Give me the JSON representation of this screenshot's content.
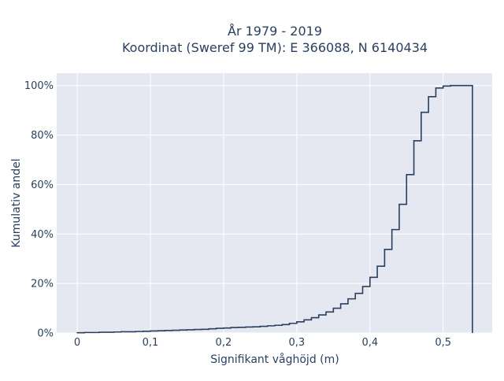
{
  "chart_data": {
    "type": "area",
    "title_line1": "År 1979 - 2019",
    "title_line2": "Koordinat (Sweref 99 TM): E 366088, N 6140434",
    "xlabel": "Signifikant våghöjd (m)",
    "ylabel": "Kumulativ andel",
    "xlim": [
      -0.028,
      0.567
    ],
    "ylim": [
      0,
      1.05
    ],
    "grid": true,
    "x_ticks": [
      0,
      0.1,
      0.2,
      0.3,
      0.4,
      0.5
    ],
    "x_tick_labels": [
      "0",
      "0,1",
      "0,2",
      "0,3",
      "0,4",
      "0,5"
    ],
    "y_ticks": [
      0,
      0.2,
      0.4,
      0.6,
      0.8,
      1.0
    ],
    "y_tick_labels": [
      "0%",
      "20%",
      "40%",
      "60%",
      "80%",
      "100%"
    ],
    "series": [
      {
        "style": "step-cumulative-histogram",
        "x": [
          0,
          0.01,
          0.02,
          0.03,
          0.04,
          0.05,
          0.06,
          0.07,
          0.08,
          0.09,
          0.1,
          0.11,
          0.12,
          0.13,
          0.14,
          0.15,
          0.16,
          0.17,
          0.18,
          0.19,
          0.2,
          0.21,
          0.22,
          0.23,
          0.24,
          0.25,
          0.26,
          0.27,
          0.28,
          0.29,
          0.3,
          0.31,
          0.32,
          0.33,
          0.34,
          0.35,
          0.36,
          0.37,
          0.38,
          0.39,
          0.4,
          0.41,
          0.42,
          0.43,
          0.44,
          0.45,
          0.46,
          0.47,
          0.48,
          0.49,
          0.5,
          0.51,
          0.52,
          0.53,
          0.54
        ],
        "y": [
          0.001,
          0.002,
          0.002,
          0.003,
          0.003,
          0.004,
          0.005,
          0.005,
          0.006,
          0.007,
          0.008,
          0.009,
          0.01,
          0.011,
          0.012,
          0.013,
          0.014,
          0.015,
          0.017,
          0.019,
          0.02,
          0.022,
          0.023,
          0.024,
          0.025,
          0.027,
          0.029,
          0.031,
          0.034,
          0.039,
          0.045,
          0.053,
          0.062,
          0.073,
          0.085,
          0.1,
          0.118,
          0.138,
          0.16,
          0.188,
          0.225,
          0.27,
          0.338,
          0.418,
          0.52,
          0.64,
          0.777,
          0.892,
          0.955,
          0.99,
          0.998,
          1.0,
          1.0,
          1.0,
          0
        ]
      }
    ],
    "colors": {
      "plot_bg": "#e5e8f1",
      "line": "#2a3f5f",
      "grid": "#ffffff",
      "text": "#2a3f5f"
    }
  }
}
